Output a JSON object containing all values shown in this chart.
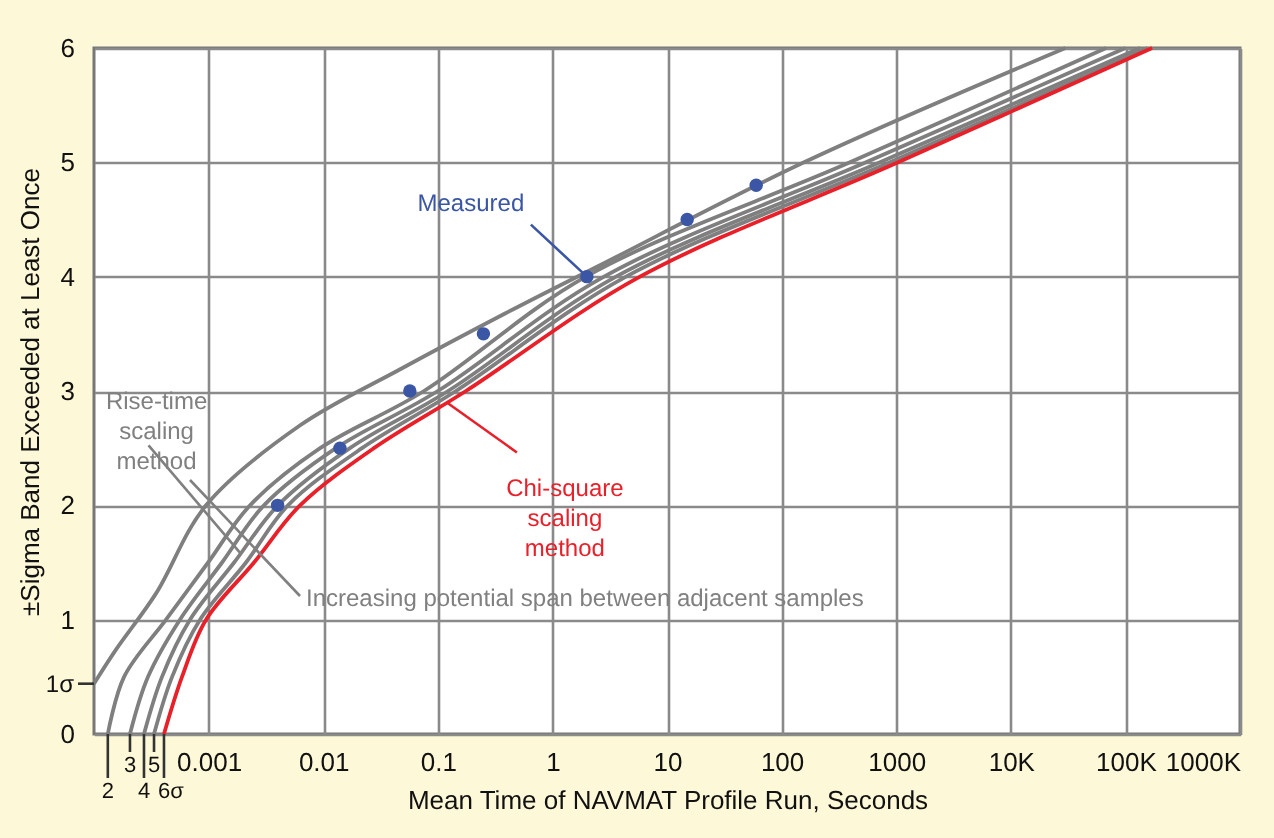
{
  "chart_data": {
    "type": "line",
    "xlabel": "Mean Time of NAVMAT Profile Run, Seconds",
    "ylabel": "±Sigma Band Exceeded at Least Once",
    "log": "x",
    "xlim": [
      0.0001,
      1000000
    ],
    "ylim": [
      0,
      6
    ],
    "xticks": [
      0.001,
      0.01,
      0.1,
      1,
      10,
      100,
      1000,
      {
        "value": 10000,
        "label": "10K"
      },
      {
        "value": 100000,
        "label": "100K"
      },
      {
        "value": 1000000,
        "label": "1000K"
      }
    ],
    "yticks": [
      0,
      1,
      2,
      3,
      4,
      5,
      6
    ],
    "grid": true,
    "series": [
      {
        "color": "#7f7f7f",
        "x": [
          0.0001,
          0.000156,
          0.000348,
          0.00095,
          0.0063,
          0.047,
          0.39,
          2.6,
          157,
          30000
        ],
        "values": [
          0.44,
          0.74,
          1.23,
          2,
          2.7,
          3.19,
          3.68,
          4.1,
          5,
          6
        ]
      },
      {
        "color": "#7f7f7f",
        "x": [
          0.000132,
          0.000183,
          0.000425,
          0.00099,
          0.0023,
          0.0094,
          0.0758,
          1.96,
          395,
          68000
        ],
        "values": [
          0,
          0.5,
          1,
          1.5,
          2,
          2.5,
          3,
          4,
          5,
          6
        ]
      },
      {
        "color": "#7f7f7f",
        "x": [
          0.000206,
          0.000296,
          0.000562,
          0.00131,
          0.00304,
          0.0129,
          0.1,
          2.82,
          545,
          100000
        ],
        "values": [
          0,
          0.5,
          1,
          1.5,
          2,
          2.5,
          3,
          4,
          5,
          6
        ]
      },
      {
        "color": "#7f7f7f",
        "x": [
          0.000273,
          0.000392,
          0.000688,
          0.00167,
          0.00403,
          0.0171,
          0.123,
          3.59,
          722,
          134000
        ],
        "values": [
          0,
          0.5,
          1,
          1.5,
          2,
          2.5,
          3,
          4,
          5,
          6
        ]
      },
      {
        "color": "#7f7f7f",
        "x": [
          0.000334,
          0.00048,
          0.000841,
          0.00212,
          0.00493,
          0.0218,
          0.144,
          4.39,
          883,
          157000
        ],
        "values": [
          0,
          0.5,
          1,
          1.5,
          2,
          2.5,
          3,
          4,
          5,
          6
        ]
      },
      {
        "color": "#e8202a",
        "x": [
          0.000408,
          0.000586,
          0.00095,
          0.00249,
          0.00628,
          0.0277,
          0.176,
          5.81,
          1040,
          171000
        ],
        "values": [
          0,
          0.5,
          1,
          1.5,
          2,
          2.5,
          3,
          4,
          5,
          6
        ]
      },
      {
        "type": "scatter",
        "color": "#3a56a5",
        "marker": "circle",
        "x": [
          0.004,
          0.014,
          0.057,
          0.25,
          2.0,
          15,
          60
        ],
        "values": [
          2,
          2.5,
          3,
          3.5,
          4,
          4.5,
          4.8
        ]
      }
    ],
    "annotations": [
      {
        "text": "Measured",
        "x": 2.0,
        "y": 4.0
      },
      {
        "text": "Chi-square scaling method",
        "x": 0.12,
        "y": 2.9
      },
      {
        "text": "Rise-time scaling method",
        "x": 0.0019,
        "y": 1.58
      },
      "Increasing potential span between adjacent samples",
      {
        "text": "1σ",
        "x": 0.0001,
        "y": 0.44
      },
      {
        "text": "2",
        "x": 0.000132,
        "y": 0
      },
      {
        "text": "3",
        "x": 0.000206,
        "y": 0
      },
      {
        "text": "4",
        "x": 0.000273,
        "y": 0
      },
      {
        "text": "5",
        "x": 0.000334,
        "y": 0
      },
      {
        "text": "6σ",
        "x": 0.000408,
        "y": 0
      }
    ]
  }
}
